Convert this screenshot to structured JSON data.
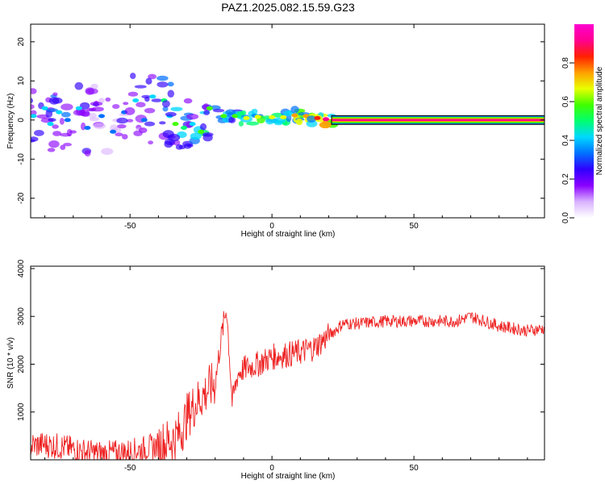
{
  "title": "PAZ1.2025.082.15.59.G23",
  "chart_data": [
    {
      "type": "heatmap",
      "xlabel": "Height of straight line (km)",
      "ylabel": "Frequency (Hz)",
      "xlim": [
        -85,
        96
      ],
      "ylim": [
        -25,
        24.5
      ],
      "xticks": [
        -50,
        0,
        50
      ],
      "yticks": [
        -20,
        -10,
        0,
        10,
        20
      ],
      "colorbar": {
        "label": "Normalized spectral amplitude",
        "range": [
          0,
          1
        ],
        "ticks": [
          "0.0",
          "0.2",
          "0.4",
          "0.6",
          "0.8"
        ],
        "colors": [
          "#ffffff",
          "#d9b3ff",
          "#8a00ff",
          "#3000ff",
          "#0070ff",
          "#00d8ff",
          "#00ff70",
          "#40ff00",
          "#e8ff00",
          "#ffa000",
          "#ff2000",
          "#ff0090",
          "#ff00d0"
        ]
      },
      "clusters": [
        {
          "x": -84,
          "y": 1,
          "a": 0.25
        },
        {
          "x": -80,
          "y": 3,
          "a": 0.3
        },
        {
          "x": -78,
          "y": -1,
          "a": 0.25
        },
        {
          "x": -75,
          "y": 2,
          "a": 0.3
        },
        {
          "x": -72,
          "y": 0,
          "a": 0.2
        },
        {
          "x": -68,
          "y": 3,
          "a": 0.25
        },
        {
          "x": -65,
          "y": -2,
          "a": 0.2
        },
        {
          "x": -62,
          "y": 4,
          "a": 0.2
        },
        {
          "x": -60,
          "y": 1,
          "a": 0.2
        },
        {
          "x": -56,
          "y": -3,
          "a": 0.15
        },
        {
          "x": -52,
          "y": 2,
          "a": 0.2
        },
        {
          "x": -48,
          "y": 5,
          "a": 0.25
        },
        {
          "x": -45,
          "y": 0,
          "a": 0.2
        },
        {
          "x": -42,
          "y": 6,
          "a": 0.3
        },
        {
          "x": -38,
          "y": 5,
          "a": 0.35
        },
        {
          "x": -36,
          "y": 1,
          "a": 0.25
        },
        {
          "x": -34,
          "y": -1,
          "a": 0.4
        },
        {
          "x": -31,
          "y": -2,
          "a": 0.35
        },
        {
          "x": -28,
          "y": -1,
          "a": 0.3
        },
        {
          "x": -25,
          "y": -3,
          "a": 0.45
        },
        {
          "x": -22,
          "y": 3,
          "a": 0.4
        },
        {
          "x": -17,
          "y": 1,
          "a": 0.4
        },
        {
          "x": -13,
          "y": 1,
          "a": 0.45
        },
        {
          "x": -9,
          "y": 0.5,
          "a": 0.5
        },
        {
          "x": -5,
          "y": 0.8,
          "a": 0.5
        },
        {
          "x": 0,
          "y": 0.7,
          "a": 0.55
        },
        {
          "x": 4,
          "y": 0.7,
          "a": 0.55
        },
        {
          "x": 8,
          "y": 1.2,
          "a": 0.6
        },
        {
          "x": 12,
          "y": 1,
          "a": 0.6
        },
        {
          "x": 16,
          "y": 0.5,
          "a": 0.65
        },
        {
          "x": 19,
          "y": 0.2,
          "a": 0.75
        }
      ],
      "band": {
        "x_start": 21,
        "x_end": 96,
        "y": 0,
        "half_width": 0.8,
        "a": 0.85
      }
    },
    {
      "type": "line",
      "xlabel": "Height of straight line (km)",
      "ylabel": "SNR (10 * v/v)",
      "xlim": [
        -85,
        96
      ],
      "ylim": [
        0,
        4050
      ],
      "xticks": [
        -50,
        0,
        50
      ],
      "yticks": [
        1000,
        2000,
        3000,
        4000
      ],
      "color": "#ee2222",
      "series": [
        {
          "x": [
            -85,
            -80,
            -75,
            -70,
            -65,
            -60,
            -55,
            -50,
            -45,
            -40,
            -35,
            -32,
            -30,
            -28,
            -25,
            -22,
            -20,
            -18,
            -16,
            -15,
            -14,
            -12,
            -10,
            -5,
            0,
            5,
            10,
            15,
            20,
            25,
            30,
            40,
            50,
            60,
            65,
            70,
            75,
            80,
            85,
            90,
            96
          ],
          "y": [
            300,
            320,
            280,
            220,
            160,
            130,
            140,
            170,
            230,
            300,
            420,
            600,
            900,
            1100,
            1300,
            1500,
            1600,
            2500,
            3200,
            2200,
            1200,
            1800,
            1900,
            2000,
            2150,
            2200,
            2250,
            2350,
            2600,
            2850,
            2850,
            2900,
            2900,
            2900,
            2900,
            3000,
            2900,
            2800,
            2750,
            2700,
            2750
          ]
        }
      ]
    }
  ]
}
